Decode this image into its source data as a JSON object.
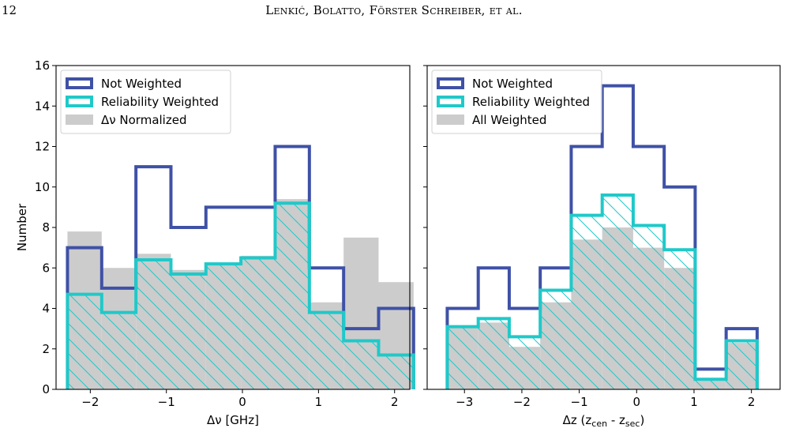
{
  "header": {
    "page_number": "12",
    "running_head": "Lenkić, Bolatto, Förster Schreiber, et al."
  },
  "colors": {
    "not_weighted": "#3f51a6",
    "reliability_weighted": "#1fc9c9",
    "fill": "#cccccc"
  },
  "chart_data": [
    {
      "type": "histogram",
      "ylabel": "Number",
      "xlabel": "Δν [GHz]",
      "xlim": [
        -2.45,
        2.2
      ],
      "ylim": [
        0,
        16
      ],
      "xticks": [
        -2,
        -1,
        0,
        1,
        2
      ],
      "xtick_labels": [
        "−2",
        "−1",
        "0",
        "1",
        "2"
      ],
      "yticks": [
        0,
        2,
        4,
        6,
        8,
        10,
        12,
        14,
        16
      ],
      "grid": false,
      "legend_position": "top-left",
      "bin_edges": [
        -2.3,
        -1.85,
        -1.4,
        -0.94,
        -0.48,
        -0.02,
        0.43,
        0.88,
        1.33,
        1.79,
        2.25
      ],
      "series": [
        {
          "name": "Not Weighted",
          "style": "step",
          "values": [
            7,
            5,
            11,
            8,
            9,
            9,
            12,
            6,
            3,
            4
          ]
        },
        {
          "name": "Reliability Weighted",
          "style": "step-hatched",
          "values": [
            4.7,
            3.8,
            6.4,
            5.7,
            6.2,
            6.5,
            9.2,
            3.8,
            2.4,
            1.7
          ]
        },
        {
          "name": "Δν Normalized",
          "style": "fill",
          "values": [
            7.8,
            6.0,
            6.7,
            5.9,
            6.2,
            6.6,
            9.4,
            4.3,
            7.5,
            5.3
          ]
        }
      ]
    },
    {
      "type": "histogram",
      "ylabel": "",
      "xlabel": "Δz (zcen - zsec)",
      "xlim": [
        -3.65,
        2.5
      ],
      "ylim": [
        0,
        16
      ],
      "xticks": [
        -3,
        -2,
        -1,
        0,
        1,
        2
      ],
      "xtick_labels": [
        "−3",
        "−2",
        "−1",
        "0",
        "1",
        "2"
      ],
      "yticks": [
        0,
        2,
        4,
        6,
        8,
        10,
        12,
        14,
        16
      ],
      "grid": false,
      "legend_position": "top-left",
      "bin_edges": [
        -3.3,
        -2.76,
        -2.22,
        -1.68,
        -1.14,
        -0.6,
        -0.06,
        0.48,
        1.02,
        1.56,
        2.1
      ],
      "series": [
        {
          "name": "Not Weighted",
          "style": "step",
          "values": [
            4,
            6,
            4,
            6,
            12,
            15,
            12,
            10,
            1,
            3
          ]
        },
        {
          "name": "Reliability Weighted",
          "style": "step-hatched",
          "values": [
            3.1,
            3.5,
            2.6,
            4.9,
            8.6,
            9.6,
            8.1,
            6.9,
            0.5,
            2.4
          ]
        },
        {
          "name": "All Weighted",
          "style": "fill",
          "values": [
            3.1,
            3.3,
            2.1,
            4.3,
            7.4,
            8.0,
            7.0,
            6.0,
            0.5,
            2.3
          ]
        }
      ]
    }
  ]
}
